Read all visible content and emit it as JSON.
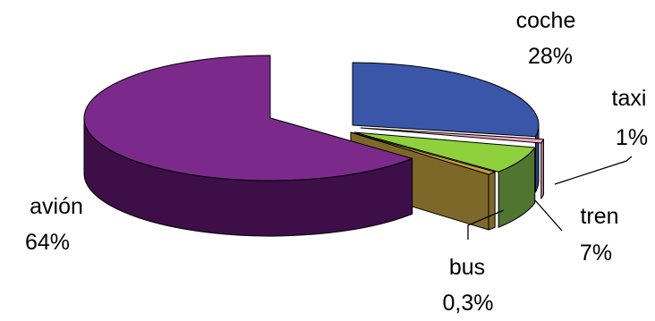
{
  "chart_data": {
    "type": "pie",
    "style": "3d-exploded",
    "slices": [
      {
        "category": "coche",
        "percent_label": "28%",
        "value": 28,
        "color": "#3a56a8",
        "side_color": "#2a3e7e"
      },
      {
        "category": "taxi",
        "percent_label": "1%",
        "value": 1,
        "color": "#f2a6c4",
        "side_color": "#b97c95"
      },
      {
        "category": "tren",
        "percent_label": "7%",
        "value": 7,
        "color": "#8fd13c",
        "side_color": "#4f7530"
      },
      {
        "category": "bus",
        "percent_label": "0,3%",
        "value": 0.3,
        "color": "#c6a03a",
        "side_color": "#7e6829"
      },
      {
        "category": "avión",
        "percent_label": "64%",
        "value": 64,
        "color": "#7b2a8c",
        "side_color": "#3d0e47"
      }
    ],
    "legend": "none",
    "labels": "outside-with-leader-lines"
  }
}
